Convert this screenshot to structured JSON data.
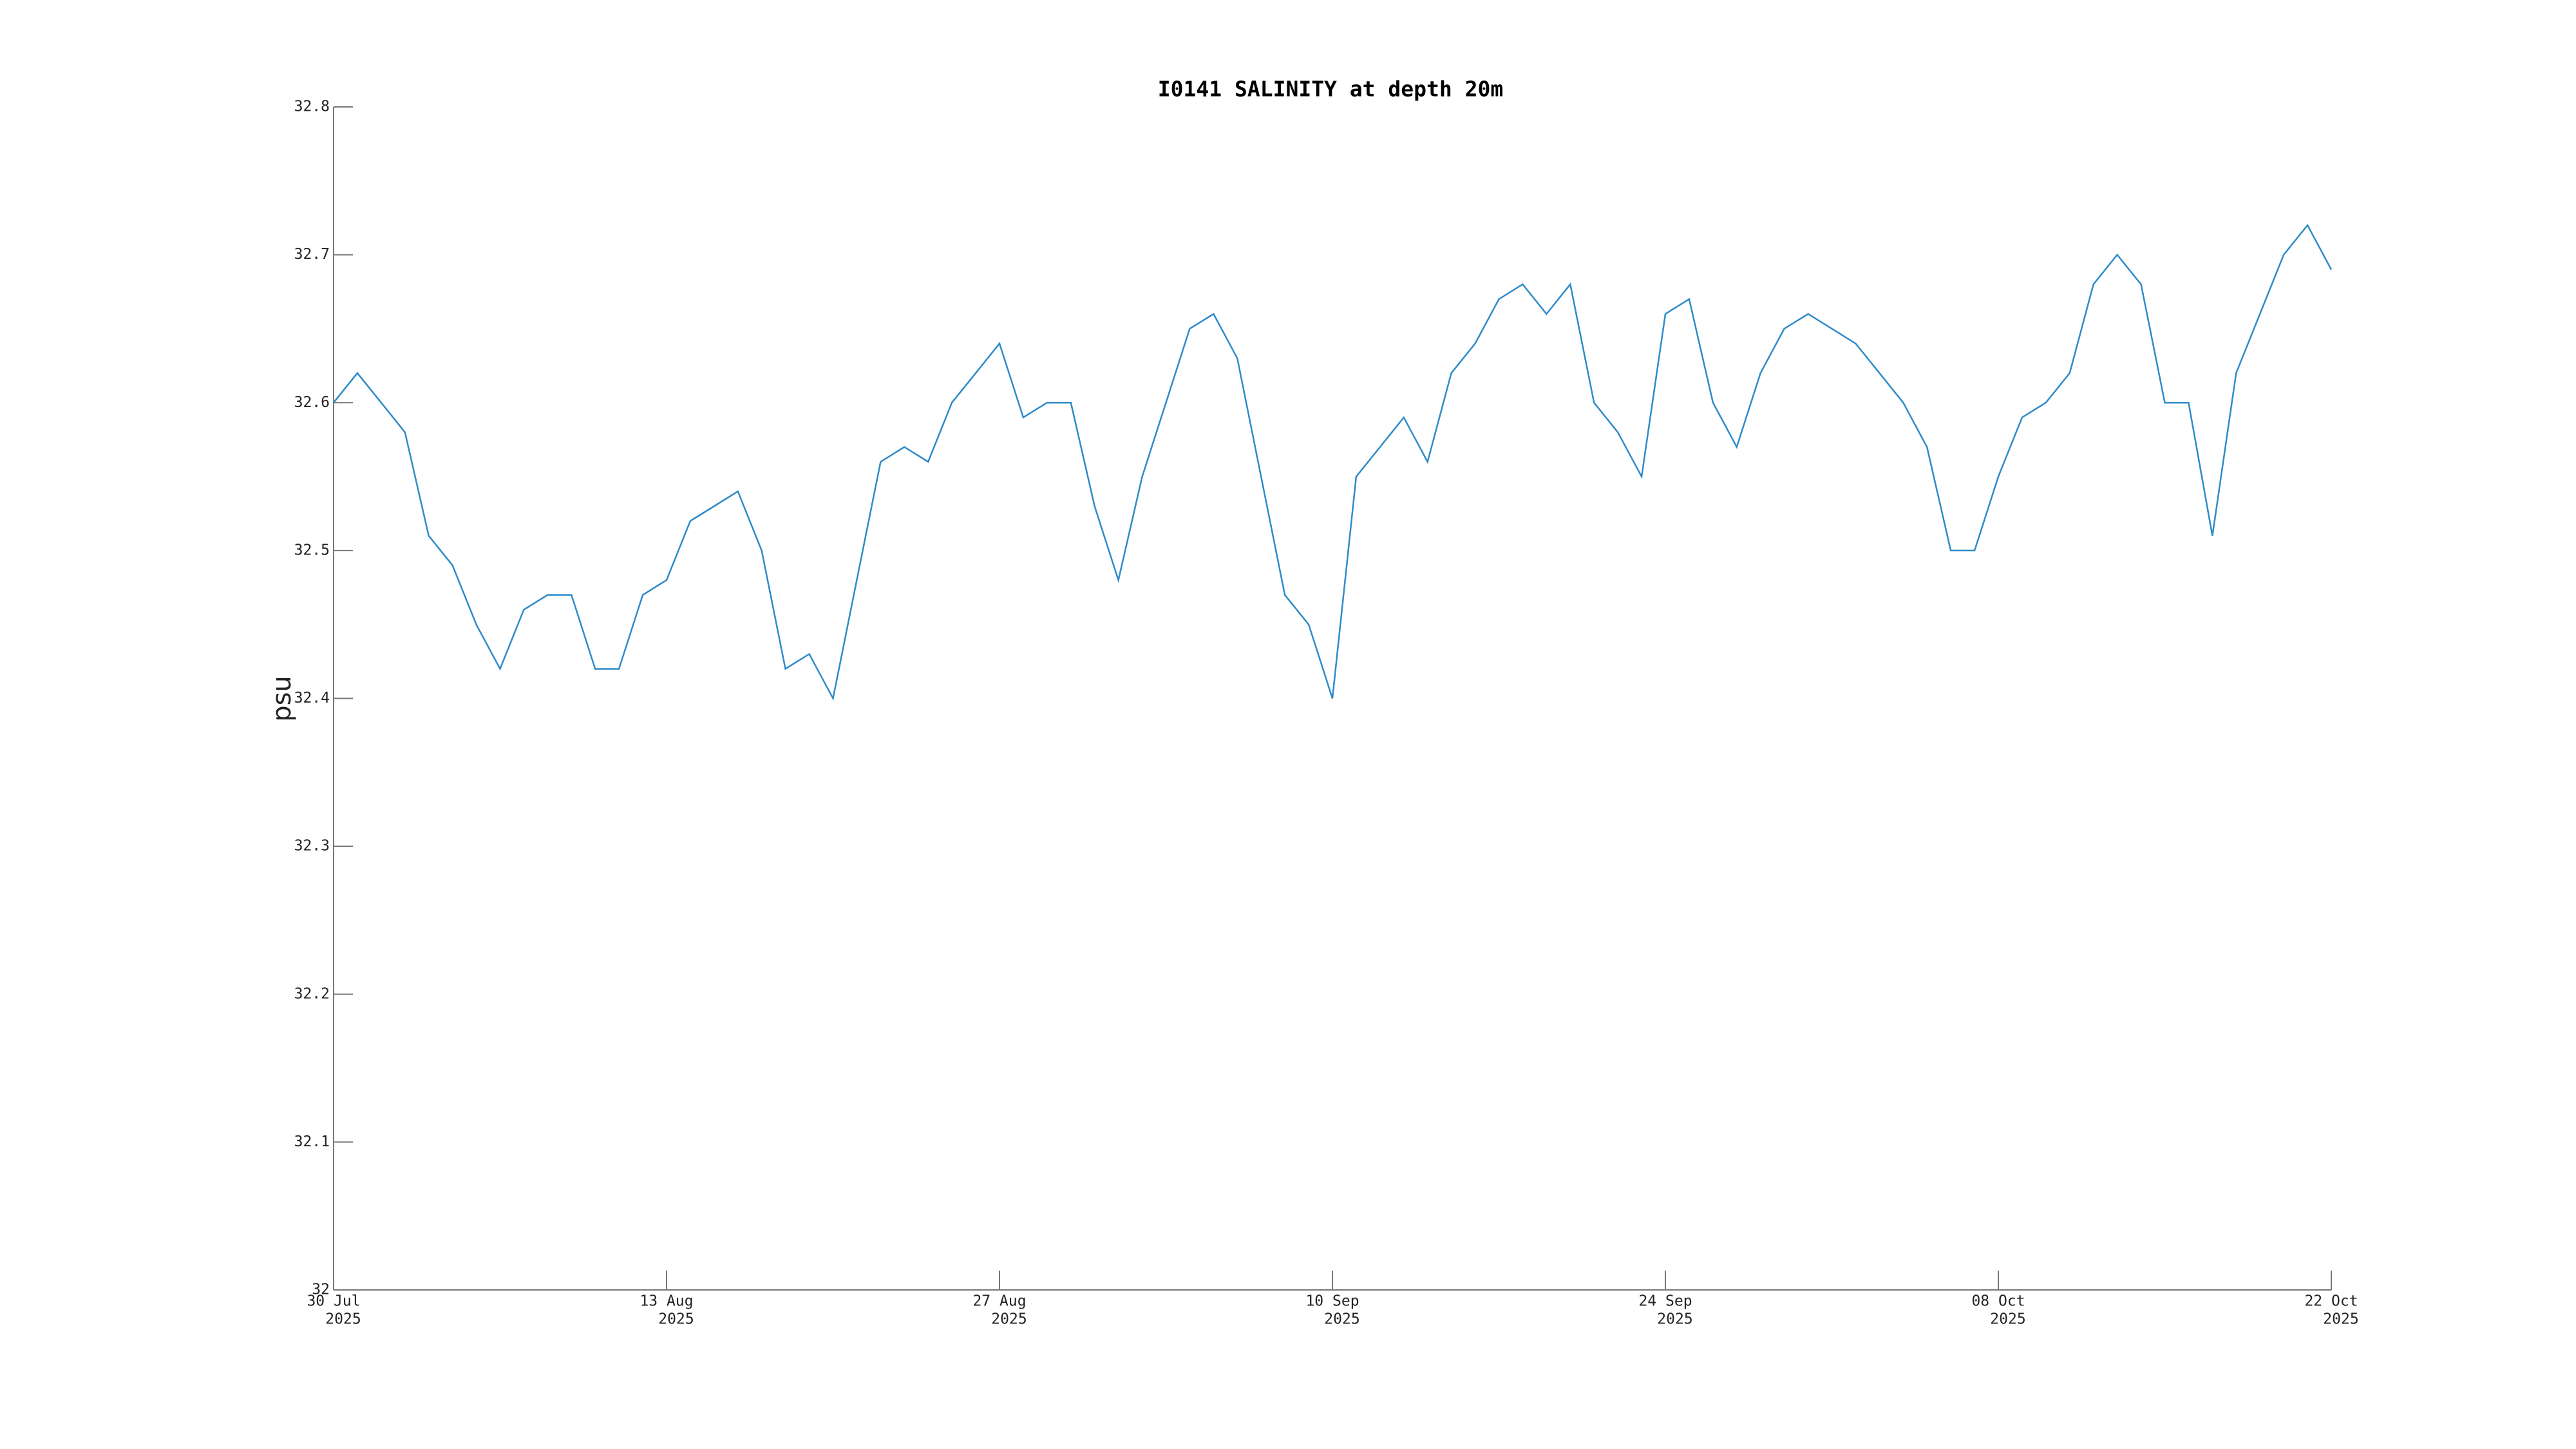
{
  "chart_data": {
    "type": "line",
    "title": "I0141 SALINITY at depth 20m",
    "y_label": "psu",
    "x": [
      "2025-07-30",
      "2025-07-31",
      "2025-08-01",
      "2025-08-02",
      "2025-08-03",
      "2025-08-04",
      "2025-08-05",
      "2025-08-06",
      "2025-08-07",
      "2025-08-08",
      "2025-08-09",
      "2025-08-10",
      "2025-08-11",
      "2025-08-12",
      "2025-08-13",
      "2025-08-14",
      "2025-08-15",
      "2025-08-16",
      "2025-08-17",
      "2025-08-18",
      "2025-08-19",
      "2025-08-20",
      "2025-08-21",
      "2025-08-22",
      "2025-08-23",
      "2025-08-24",
      "2025-08-25",
      "2025-08-26",
      "2025-08-27",
      "2025-08-28",
      "2025-08-29",
      "2025-08-30",
      "2025-08-31",
      "2025-09-01",
      "2025-09-02",
      "2025-09-03",
      "2025-09-04",
      "2025-09-05",
      "2025-09-06",
      "2025-09-07",
      "2025-09-08",
      "2025-09-09",
      "2025-09-10",
      "2025-09-11",
      "2025-09-12",
      "2025-09-13",
      "2025-09-14",
      "2025-09-15",
      "2025-09-16",
      "2025-09-17",
      "2025-09-18",
      "2025-09-19",
      "2025-09-20",
      "2025-09-21",
      "2025-09-22",
      "2025-09-23",
      "2025-09-24",
      "2025-09-25",
      "2025-09-26",
      "2025-09-27",
      "2025-09-28",
      "2025-09-29",
      "2025-09-30",
      "2025-10-01",
      "2025-10-02",
      "2025-10-03",
      "2025-10-04",
      "2025-10-05",
      "2025-10-06",
      "2025-10-07",
      "2025-10-08",
      "2025-10-09",
      "2025-10-10",
      "2025-10-11",
      "2025-10-12",
      "2025-10-13",
      "2025-10-14",
      "2025-10-15",
      "2025-10-16",
      "2025-10-17",
      "2025-10-18",
      "2025-10-19",
      "2025-10-20",
      "2025-10-21",
      "2025-10-22"
    ],
    "series": [
      {
        "name": "SALINITY",
        "color": "#2e8bc9",
        "values": [
          32.6,
          32.62,
          32.6,
          32.58,
          32.51,
          32.49,
          32.45,
          32.42,
          32.46,
          32.47,
          32.47,
          32.42,
          32.42,
          32.47,
          32.48,
          32.52,
          32.53,
          32.54,
          32.5,
          32.42,
          32.43,
          32.4,
          32.48,
          32.56,
          32.57,
          32.56,
          32.6,
          32.62,
          32.64,
          32.59,
          32.6,
          32.6,
          32.53,
          32.48,
          32.55,
          32.6,
          32.65,
          32.66,
          32.63,
          32.55,
          32.47,
          32.45,
          32.4,
          32.55,
          32.57,
          32.59,
          32.56,
          32.62,
          32.64,
          32.67,
          32.68,
          32.66,
          32.68,
          32.6,
          32.58,
          32.55,
          32.66,
          32.67,
          32.6,
          32.57,
          32.62,
          32.65,
          32.66,
          32.65,
          32.64,
          32.62,
          32.6,
          32.57,
          32.5,
          32.5,
          32.55,
          32.59,
          32.6,
          32.62,
          32.68,
          32.7,
          32.68,
          32.6,
          32.6,
          32.51,
          32.62,
          32.66,
          32.7,
          32.72,
          32.69
        ]
      }
    ],
    "xlim": [
      "2025-07-30",
      "2025-10-22"
    ],
    "xticks": [
      {
        "value": "2025-07-30",
        "label": [
          "30 Jul",
          "2025"
        ]
      },
      {
        "value": "2025-08-13",
        "label": [
          "13 Aug",
          "2025"
        ]
      },
      {
        "value": "2025-08-27",
        "label": [
          "27 Aug",
          "2025"
        ]
      },
      {
        "value": "2025-09-10",
        "label": [
          "10 Sep",
          "2025"
        ]
      },
      {
        "value": "2025-09-24",
        "label": [
          "24 Sep",
          "2025"
        ]
      },
      {
        "value": "2025-10-08",
        "label": [
          "08 Oct",
          "2025"
        ]
      },
      {
        "value": "2025-10-22",
        "label": [
          "22 Oct",
          "2025"
        ]
      }
    ],
    "ylim": [
      32,
      32.8
    ],
    "yticks": [
      32,
      32.1,
      32.2,
      32.3,
      32.4,
      32.5,
      32.6,
      32.7,
      32.8
    ],
    "grid": false
  }
}
